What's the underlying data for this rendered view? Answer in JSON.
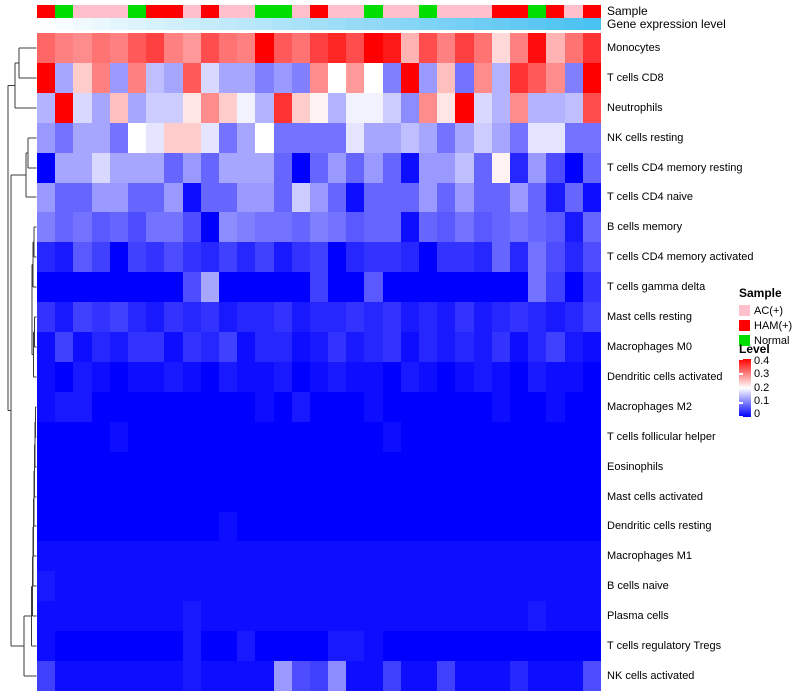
{
  "annotations": {
    "sample_label": "Sample",
    "gene_label": "Gene expression level"
  },
  "legend": {
    "sample": {
      "title": "Sample",
      "items": [
        {
          "label": "AC(+)",
          "color": "#FFC0CB"
        },
        {
          "label": "HAM(+)",
          "color": "#FF0000"
        },
        {
          "label": "Normal",
          "color": "#00DD00"
        }
      ]
    },
    "level": {
      "title": "Level",
      "ticks": [
        "0.4",
        "0.3",
        "0.2",
        "0.1",
        "0"
      ],
      "gradient": [
        "#FF0000",
        "#FF8080",
        "#FFFFFF",
        "#8080FF",
        "#0000FF"
      ]
    }
  },
  "chart_data": {
    "type": "heatmap",
    "columns": 31,
    "value_range": [
      0,
      0.4
    ],
    "colormap": {
      "low": "#0000FF",
      "mid": "#FFFFFF",
      "high": "#FF0000",
      "mid_at": 0.2
    },
    "column_annotations": {
      "sample_groups": [
        "HAM",
        "Normal",
        "AC",
        "AC",
        "AC",
        "Normal",
        "HAM",
        "HAM",
        "AC",
        "HAM",
        "AC",
        "AC",
        "Normal",
        "Normal",
        "AC",
        "HAM",
        "AC",
        "AC",
        "Normal",
        "AC",
        "AC",
        "Normal",
        "AC",
        "AC",
        "AC",
        "HAM",
        "HAM",
        "Normal",
        "HAM",
        "AC",
        "HAM"
      ],
      "group_colors": {
        "AC": "#FFC0CB",
        "HAM": "#FF0000",
        "Normal": "#00DD00"
      },
      "gene_expression_gradient": {
        "from": "#FCFEFF",
        "to": "#49C1F1"
      }
    },
    "rows": [
      {
        "name": "Monocytes",
        "values": [
          0.32,
          0.3,
          0.29,
          0.31,
          0.3,
          0.33,
          0.35,
          0.3,
          0.28,
          0.34,
          0.31,
          0.3,
          0.4,
          0.33,
          0.31,
          0.35,
          0.37,
          0.34,
          0.4,
          0.38,
          0.26,
          0.34,
          0.3,
          0.35,
          0.31,
          0.23,
          0.3,
          0.39,
          0.26,
          0.31,
          0.36
        ]
      },
      {
        "name": "T cells CD8",
        "values": [
          0.4,
          0.13,
          0.24,
          0.3,
          0.12,
          0.3,
          0.15,
          0.13,
          0.33,
          0.17,
          0.13,
          0.13,
          0.1,
          0.12,
          0.1,
          0.29,
          0.2,
          0.28,
          0.2,
          0.1,
          0.4,
          0.12,
          0.25,
          0.09,
          0.29,
          0.14,
          0.36,
          0.33,
          0.29,
          0.1,
          0.4
        ]
      },
      {
        "name": "Neutrophils",
        "values": [
          0.14,
          0.4,
          0.17,
          0.13,
          0.25,
          0.13,
          0.16,
          0.16,
          0.22,
          0.29,
          0.24,
          0.19,
          0.14,
          0.36,
          0.24,
          0.21,
          0.14,
          0.19,
          0.19,
          0.16,
          0.11,
          0.29,
          0.22,
          0.4,
          0.17,
          0.14,
          0.29,
          0.14,
          0.14,
          0.15,
          0.34
        ]
      },
      {
        "name": "NK cells resting",
        "values": [
          0.12,
          0.09,
          0.13,
          0.13,
          0.09,
          0.2,
          0.18,
          0.24,
          0.24,
          0.18,
          0.09,
          0.13,
          0.2,
          0.09,
          0.09,
          0.09,
          0.09,
          0.18,
          0.13,
          0.13,
          0.15,
          0.13,
          0.09,
          0.13,
          0.16,
          0.13,
          0.09,
          0.18,
          0.18,
          0.09,
          0.09
        ]
      },
      {
        "name": "T cells CD4 memory resting",
        "values": [
          0.0,
          0.13,
          0.13,
          0.17,
          0.13,
          0.13,
          0.13,
          0.08,
          0.12,
          0.08,
          0.13,
          0.13,
          0.13,
          0.08,
          0.0,
          0.08,
          0.12,
          0.08,
          0.12,
          0.08,
          0.01,
          0.12,
          0.12,
          0.15,
          0.08,
          0.21,
          0.03,
          0.12,
          0.06,
          0.0,
          0.08
        ]
      },
      {
        "name": "T cells CD4 naive",
        "values": [
          0.12,
          0.08,
          0.08,
          0.12,
          0.12,
          0.08,
          0.08,
          0.12,
          0.01,
          0.08,
          0.08,
          0.12,
          0.12,
          0.08,
          0.16,
          0.12,
          0.08,
          0.01,
          0.08,
          0.08,
          0.08,
          0.12,
          0.08,
          0.12,
          0.08,
          0.08,
          0.12,
          0.08,
          0.02,
          0.08,
          0.01
        ]
      },
      {
        "name": "B cells memory",
        "values": [
          0.1,
          0.08,
          0.09,
          0.07,
          0.08,
          0.06,
          0.09,
          0.09,
          0.06,
          0.0,
          0.11,
          0.1,
          0.09,
          0.09,
          0.08,
          0.1,
          0.09,
          0.07,
          0.08,
          0.08,
          0.01,
          0.08,
          0.07,
          0.09,
          0.07,
          0.08,
          0.09,
          0.08,
          0.07,
          0.02,
          0.08
        ]
      },
      {
        "name": "T cells CD4 memory activated",
        "values": [
          0.03,
          0.02,
          0.07,
          0.05,
          0.0,
          0.05,
          0.04,
          0.06,
          0.04,
          0.03,
          0.05,
          0.03,
          0.05,
          0.02,
          0.04,
          0.05,
          0.0,
          0.03,
          0.04,
          0.04,
          0.03,
          0.0,
          0.04,
          0.04,
          0.03,
          0.08,
          0.03,
          0.09,
          0.06,
          0.03,
          0.06
        ]
      },
      {
        "name": "T cells gamma delta",
        "values": [
          0.0,
          0.0,
          0.0,
          0.0,
          0.0,
          0.0,
          0.0,
          0.0,
          0.06,
          0.13,
          0.0,
          0.0,
          0.0,
          0.0,
          0.0,
          0.05,
          0.0,
          0.0,
          0.07,
          0.0,
          0.0,
          0.0,
          0.0,
          0.0,
          0.0,
          0.0,
          0.0,
          0.09,
          0.05,
          0.0,
          0.04
        ]
      },
      {
        "name": "Mast cells resting",
        "values": [
          0.04,
          0.02,
          0.05,
          0.04,
          0.05,
          0.03,
          0.02,
          0.04,
          0.03,
          0.04,
          0.02,
          0.03,
          0.03,
          0.04,
          0.02,
          0.03,
          0.03,
          0.04,
          0.03,
          0.04,
          0.02,
          0.03,
          0.02,
          0.04,
          0.02,
          0.03,
          0.04,
          0.03,
          0.02,
          0.03,
          0.05
        ]
      },
      {
        "name": "Macrophages M0",
        "values": [
          0.01,
          0.05,
          0.01,
          0.03,
          0.02,
          0.04,
          0.04,
          0.01,
          0.04,
          0.03,
          0.05,
          0.01,
          0.03,
          0.03,
          0.01,
          0.02,
          0.04,
          0.02,
          0.03,
          0.04,
          0.01,
          0.03,
          0.02,
          0.03,
          0.02,
          0.04,
          0.01,
          0.03,
          0.05,
          0.02,
          0.01
        ]
      },
      {
        "name": "Dendritic cells activated",
        "values": [
          0.01,
          0.0,
          0.02,
          0.01,
          0.0,
          0.01,
          0.01,
          0.02,
          0.01,
          0.0,
          0.02,
          0.01,
          0.01,
          0.02,
          0.0,
          0.01,
          0.02,
          0.01,
          0.01,
          0.0,
          0.02,
          0.01,
          0.0,
          0.01,
          0.02,
          0.01,
          0.0,
          0.02,
          0.01,
          0.01,
          0.0
        ]
      },
      {
        "name": "Macrophages M2",
        "values": [
          0.01,
          0.02,
          0.02,
          0.0,
          0.0,
          0.0,
          0.0,
          0.0,
          0.0,
          0.0,
          0.0,
          0.0,
          0.01,
          0.0,
          0.02,
          0.0,
          0.0,
          0.0,
          0.01,
          0.0,
          0.0,
          0.0,
          0.0,
          0.0,
          0.0,
          0.01,
          0.0,
          0.0,
          0.01,
          0.0,
          0.0
        ]
      },
      {
        "name": "T cells follicular helper",
        "values": [
          0.0,
          0.0,
          0.0,
          0.0,
          0.01,
          0.0,
          0.0,
          0.0,
          0.0,
          0.0,
          0.0,
          0.0,
          0.0,
          0.0,
          0.0,
          0.0,
          0.0,
          0.0,
          0.0,
          0.01,
          0.0,
          0.0,
          0.0,
          0.0,
          0.0,
          0.0,
          0.0,
          0.0,
          0.0,
          0.0,
          0.0
        ]
      },
      {
        "name": "Eosinophils",
        "values": [
          0.0,
          0.0,
          0.0,
          0.0,
          0.0,
          0.0,
          0.0,
          0.0,
          0.0,
          0.0,
          0.0,
          0.0,
          0.0,
          0.0,
          0.0,
          0.0,
          0.0,
          0.0,
          0.0,
          0.0,
          0.0,
          0.0,
          0.0,
          0.0,
          0.0,
          0.0,
          0.0,
          0.0,
          0.0,
          0.0,
          0.0
        ]
      },
      {
        "name": "Mast cells activated",
        "values": [
          0.0,
          0.0,
          0.0,
          0.0,
          0.0,
          0.0,
          0.0,
          0.0,
          0.0,
          0.0,
          0.0,
          0.0,
          0.0,
          0.0,
          0.0,
          0.0,
          0.0,
          0.0,
          0.0,
          0.0,
          0.0,
          0.0,
          0.0,
          0.0,
          0.0,
          0.0,
          0.0,
          0.0,
          0.0,
          0.0,
          0.0
        ]
      },
      {
        "name": "Dendritic cells resting",
        "values": [
          0.0,
          0.0,
          0.0,
          0.0,
          0.0,
          0.0,
          0.0,
          0.0,
          0.0,
          0.0,
          0.01,
          0.0,
          0.0,
          0.0,
          0.0,
          0.0,
          0.0,
          0.0,
          0.0,
          0.0,
          0.0,
          0.0,
          0.0,
          0.0,
          0.0,
          0.0,
          0.0,
          0.0,
          0.0,
          0.0,
          0.0
        ]
      },
      {
        "name": "Macrophages M1",
        "values": [
          0.01,
          0.01,
          0.01,
          0.01,
          0.01,
          0.01,
          0.01,
          0.01,
          0.01,
          0.01,
          0.01,
          0.01,
          0.01,
          0.01,
          0.01,
          0.01,
          0.01,
          0.01,
          0.01,
          0.01,
          0.01,
          0.01,
          0.01,
          0.01,
          0.01,
          0.01,
          0.01,
          0.01,
          0.01,
          0.01,
          0.01
        ]
      },
      {
        "name": "B cells naive",
        "values": [
          0.02,
          0.01,
          0.01,
          0.01,
          0.01,
          0.01,
          0.01,
          0.01,
          0.01,
          0.01,
          0.01,
          0.01,
          0.01,
          0.01,
          0.01,
          0.01,
          0.01,
          0.01,
          0.01,
          0.01,
          0.01,
          0.01,
          0.01,
          0.01,
          0.01,
          0.01,
          0.01,
          0.01,
          0.01,
          0.01,
          0.01
        ]
      },
      {
        "name": "Plasma cells",
        "values": [
          0.01,
          0.01,
          0.01,
          0.01,
          0.01,
          0.01,
          0.01,
          0.01,
          0.02,
          0.01,
          0.01,
          0.01,
          0.01,
          0.01,
          0.01,
          0.01,
          0.01,
          0.01,
          0.01,
          0.01,
          0.01,
          0.01,
          0.01,
          0.01,
          0.01,
          0.01,
          0.01,
          0.02,
          0.01,
          0.01,
          0.01
        ]
      },
      {
        "name": "T cells regulatory Tregs",
        "values": [
          0.01,
          0.0,
          0.0,
          0.0,
          0.0,
          0.0,
          0.0,
          0.0,
          0.02,
          0.0,
          0.0,
          0.02,
          0.0,
          0.0,
          0.0,
          0.0,
          0.02,
          0.02,
          0.01,
          0.0,
          0.0,
          0.0,
          0.0,
          0.0,
          0.0,
          0.0,
          0.0,
          0.0,
          0.0,
          0.0,
          0.0
        ]
      },
      {
        "name": "NK cells activated",
        "values": [
          0.05,
          0.01,
          0.01,
          0.01,
          0.01,
          0.01,
          0.01,
          0.01,
          0.02,
          0.01,
          0.01,
          0.01,
          0.01,
          0.12,
          0.06,
          0.05,
          0.11,
          0.01,
          0.01,
          0.05,
          0.01,
          0.01,
          0.05,
          0.01,
          0.01,
          0.01,
          0.03,
          0.01,
          0.01,
          0.01,
          0.06
        ]
      }
    ],
    "dendrogram_segments": [
      [
        19,
        48,
        36.5,
        48
      ],
      [
        19,
        78,
        36.5,
        78
      ],
      [
        19,
        48,
        19,
        78
      ],
      [
        15,
        63,
        19,
        63
      ],
      [
        15,
        108,
        36.5,
        108
      ],
      [
        15,
        63,
        15,
        108
      ],
      [
        28,
        138,
        36.5,
        138
      ],
      [
        28,
        168,
        36.5,
        168
      ],
      [
        28,
        138,
        28,
        168
      ],
      [
        26,
        153,
        28,
        153
      ],
      [
        26,
        197,
        36.5,
        197
      ],
      [
        26,
        153,
        26,
        197
      ],
      [
        34,
        227,
        36.5,
        227
      ],
      [
        34,
        257,
        36.5,
        257
      ],
      [
        34,
        227,
        34,
        257
      ],
      [
        33,
        242,
        34,
        242
      ],
      [
        33,
        287,
        36.5,
        287
      ],
      [
        33,
        242,
        33,
        287
      ],
      [
        34.5,
        317,
        36.5,
        317
      ],
      [
        34.5,
        347,
        36.5,
        347
      ],
      [
        34.5,
        317,
        34.5,
        347
      ],
      [
        33.5,
        332,
        34.5,
        332
      ],
      [
        33.5,
        377,
        36.5,
        377
      ],
      [
        33.5,
        332,
        33.5,
        377
      ],
      [
        32,
        264.5,
        33,
        264.5
      ],
      [
        32,
        354.5,
        33.5,
        354.5
      ],
      [
        32,
        264.5,
        32,
        354.5
      ],
      [
        35.5,
        407,
        36.5,
        407
      ],
      [
        35.5,
        437,
        36.5,
        437
      ],
      [
        35.5,
        407,
        35.5,
        437
      ],
      [
        35,
        422,
        35.5,
        422
      ],
      [
        35,
        467,
        36.5,
        467
      ],
      [
        35,
        422,
        35,
        467
      ],
      [
        34.5,
        444.5,
        35,
        444.5
      ],
      [
        34.5,
        497,
        36.5,
        497
      ],
      [
        34.5,
        444.5,
        34.5,
        497
      ],
      [
        34,
        470.8,
        34.5,
        470.8
      ],
      [
        34,
        526,
        36.5,
        526
      ],
      [
        34,
        470.8,
        34,
        526
      ],
      [
        33.5,
        498.4,
        34,
        498.4
      ],
      [
        33.5,
        556,
        36.5,
        556
      ],
      [
        33.5,
        498.4,
        33.5,
        556
      ],
      [
        33,
        527.2,
        33.5,
        527.2
      ],
      [
        33,
        586,
        36.5,
        586
      ],
      [
        33,
        527.2,
        33,
        586
      ],
      [
        32.5,
        556.6,
        33,
        556.6
      ],
      [
        32.5,
        616,
        36.5,
        616
      ],
      [
        32.5,
        556.6,
        32.5,
        616
      ],
      [
        31.5,
        586.3,
        32.5,
        586.3
      ],
      [
        31.5,
        646,
        36.5,
        646
      ],
      [
        31.5,
        586.3,
        31.5,
        646
      ],
      [
        24,
        616.2,
        31.5,
        616.2
      ],
      [
        24,
        676,
        36.5,
        676
      ],
      [
        24,
        616.2,
        24,
        676
      ],
      [
        11,
        175,
        26,
        175
      ],
      [
        11,
        646.1,
        24,
        646.1
      ],
      [
        11,
        175,
        11,
        646.1
      ],
      [
        8,
        85.5,
        15,
        85.5
      ],
      [
        8,
        410.5,
        11,
        410.5
      ],
      [
        8,
        85.5,
        8,
        410.5
      ]
    ]
  }
}
